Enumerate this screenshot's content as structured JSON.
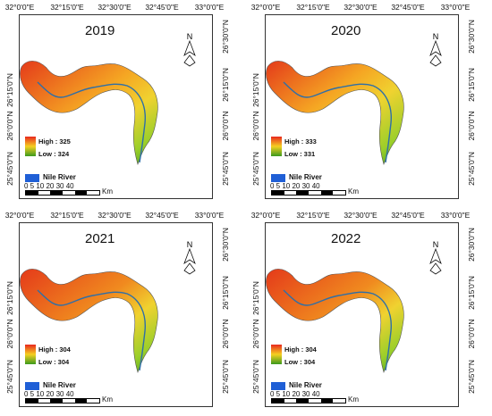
{
  "axes": {
    "lon_labels": [
      "32°0'0\"E",
      "32°15'0\"E",
      "32°30'0\"E",
      "32°45'0\"E",
      "33°0'0\"E"
    ],
    "lat_left": [
      "26°15'0\"N",
      "26°0'0\"N",
      "25°45'0\"N"
    ],
    "lat_right": [
      "26°30'0\"N",
      "26°15'0\"N",
      "26°0'0\"N",
      "25°45'0\"N"
    ]
  },
  "north_arrow": {
    "letter": "N",
    "icon": "north-arrow-icon"
  },
  "legend": {
    "high_color": "#e8281e",
    "mid_color": "#f5d020",
    "low_color": "#3c9a1e",
    "river_label": "Nile River",
    "river_color": "#1f5fd6"
  },
  "scale": {
    "ticks": "0  5 10   20    30    40",
    "unit": "Km"
  },
  "panels": [
    {
      "year": "2019",
      "high": "High : 325",
      "low": "Low : 324"
    },
    {
      "year": "2020",
      "high": "High : 333",
      "low": "Low : 331"
    },
    {
      "year": "2021",
      "high": "High : 304",
      "low": "Low : 304"
    },
    {
      "year": "2022",
      "high": "High : 304",
      "low": "Low : 304"
    }
  ]
}
